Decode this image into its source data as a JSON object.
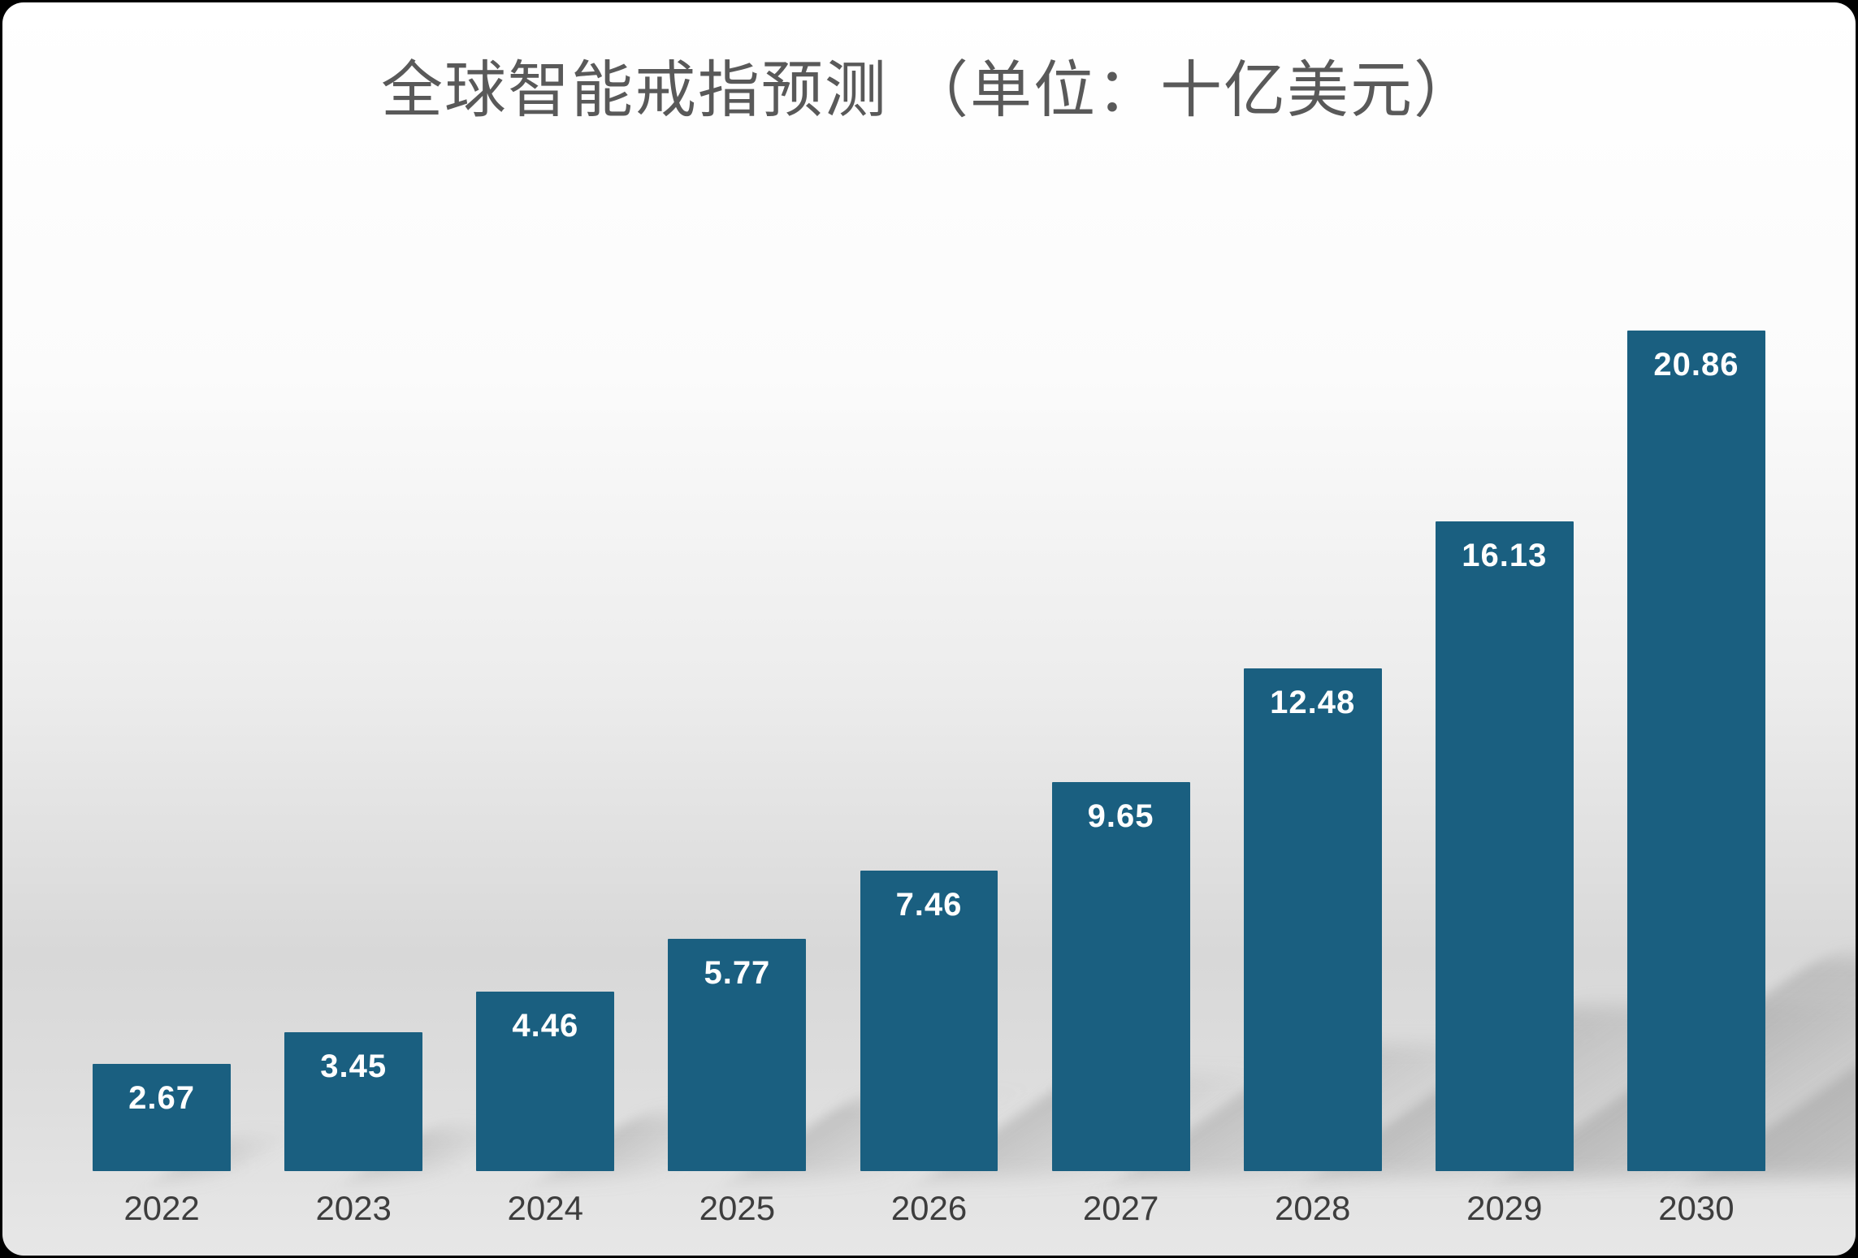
{
  "chart_data": {
    "type": "bar",
    "title": "全球智能戒指预测 （单位：十亿美元）",
    "categories": [
      "2022",
      "2023",
      "2024",
      "2025",
      "2026",
      "2027",
      "2028",
      "2029",
      "2030"
    ],
    "values": [
      2.67,
      3.45,
      4.46,
      5.77,
      7.46,
      9.65,
      12.48,
      16.13,
      20.86
    ],
    "value_labels": [
      "2.67",
      "3.45",
      "4.46",
      "5.77",
      "7.46",
      "9.65",
      "12.48",
      "16.13",
      "20.86"
    ],
    "xlabel": "",
    "ylabel": "",
    "ylim": [
      0,
      20.86
    ],
    "grid": false,
    "legend": "none",
    "bar_color": "#1a5f80",
    "value_label_color": "#ffffff",
    "axis_label_color": "#3d3d3d",
    "title_color": "#595959",
    "shadow_color": "#8a8a8a"
  }
}
